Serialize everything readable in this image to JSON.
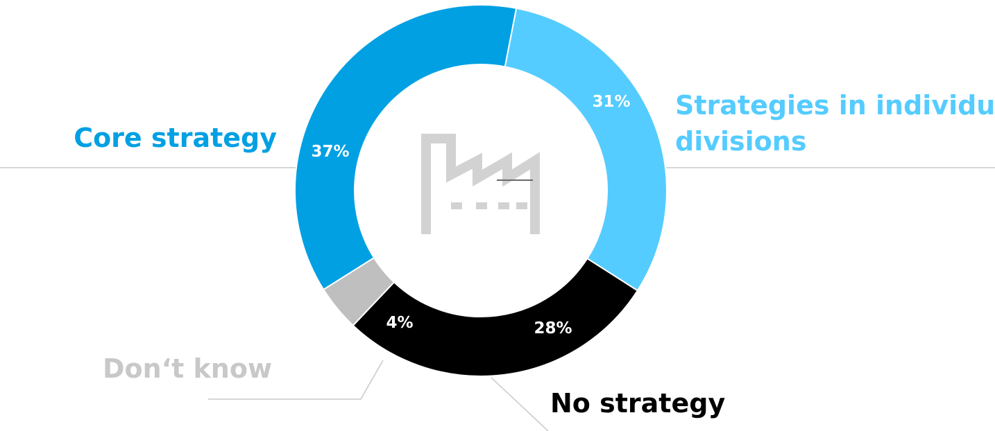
{
  "chart_data": {
    "type": "pie",
    "categories": [
      "Strategies in individual divisions",
      "No strategy",
      "Don‘t know",
      "Core strategy"
    ],
    "values": [
      31,
      28,
      4,
      37
    ],
    "value_labels": [
      "31%",
      "28%",
      "4%",
      "37%"
    ],
    "colors": [
      "#55ccff",
      "#000000",
      "#bfbfbf",
      "#00a0e3"
    ],
    "label_colors": [
      "#55ccff",
      "#000000",
      "#c8c8c8",
      "#00a0e3"
    ],
    "style": "donut",
    "center_icon": "factory-icon",
    "legend": "none",
    "title": ""
  }
}
